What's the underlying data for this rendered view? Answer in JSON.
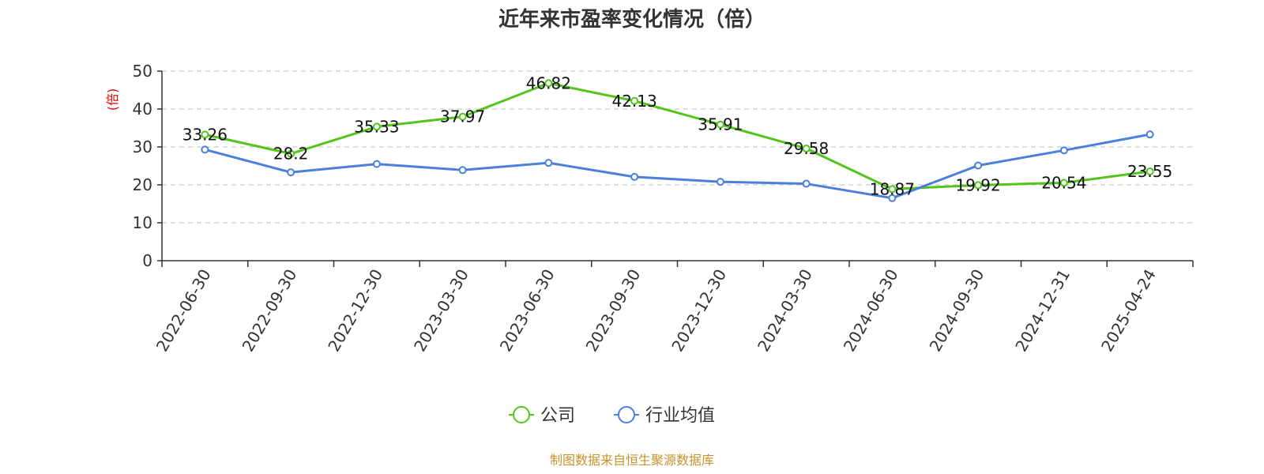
{
  "chart_data": {
    "type": "line",
    "title": "近年来市盈率变化情况（倍）",
    "ylabel": "(倍)",
    "ylim": [
      0,
      50
    ],
    "yticks": [
      0,
      10,
      20,
      30,
      40,
      50
    ],
    "grid": true,
    "legend_position": "bottom",
    "x": [
      "2022-06-30",
      "2022-09-30",
      "2022-12-30",
      "2023-03-30",
      "2023-06-30",
      "2023-09-30",
      "2023-12-30",
      "2024-03-30",
      "2024-06-30",
      "2024-09-30",
      "2024-12-31",
      "2025-04-24"
    ],
    "series": [
      {
        "name": "公司",
        "color": "#52c41a",
        "values": [
          33.26,
          28.2,
          35.33,
          37.97,
          46.82,
          42.13,
          35.91,
          29.58,
          18.87,
          19.92,
          20.54,
          23.55
        ],
        "labels": [
          "33.26",
          "28.2",
          "35.33",
          "37.97",
          "46.82",
          "42.13",
          "35.91",
          "29.58",
          "18.87",
          "19.92",
          "20.54",
          "23.55"
        ]
      },
      {
        "name": "行业均值",
        "color": "#4a7fdc",
        "values": [
          29.3,
          23.3,
          25.5,
          23.9,
          25.8,
          22.1,
          20.8,
          20.3,
          16.5,
          25.1,
          29.1,
          33.3
        ]
      }
    ]
  },
  "colors": {
    "axis": "#333333",
    "grid": "#cccccc",
    "ylabel": "#e60000",
    "source": "#c8922a"
  },
  "source_text": "制图数据来自恒生聚源数据库"
}
